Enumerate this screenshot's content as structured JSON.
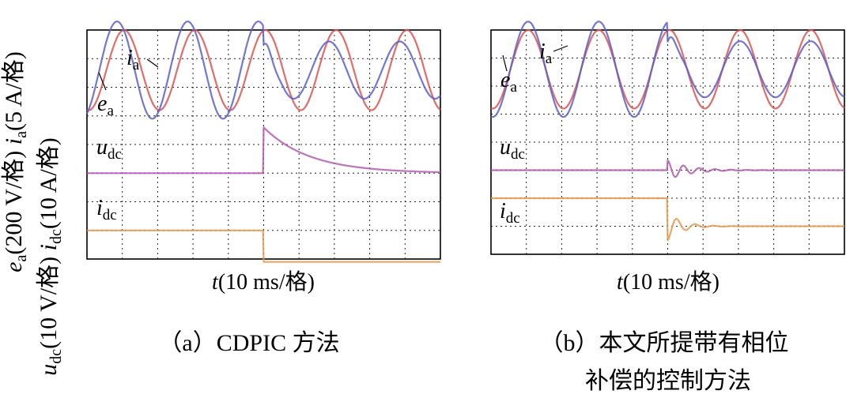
{
  "yaxis_labels": {
    "upper": {
      "e": "e",
      "e_sub": "a",
      "e_unit": "(200 V/格) ",
      "i": "i",
      "i_sub": "a",
      "i_unit": "(5 A/格)"
    },
    "lower": {
      "u": "u",
      "u_sub": "dc",
      "u_unit": "(10 V/格) ",
      "i": "i",
      "i_sub": "dc",
      "i_unit": "(10 A/格)"
    }
  },
  "panels": [
    {
      "id": "a",
      "xlabel": {
        "t": "t",
        "unit": "(10 ms/格)"
      },
      "caption_lines": [
        "（a）CDPIC 方法"
      ],
      "labels": {
        "i": "i",
        "i_sub": "a",
        "e": "e",
        "e_sub": "a",
        "u": "u",
        "u_sub": "dc",
        "idc": "i",
        "idc_sub": "dc"
      }
    },
    {
      "id": "b",
      "xlabel": {
        "t": "t",
        "unit": "(10 ms/格)"
      },
      "caption_lines": [
        "（b）本文所提带有相位",
        "补偿的控制方法"
      ],
      "labels": {
        "i": "i",
        "i_sub": "a",
        "e": "e",
        "e_sub": "a",
        "u": "u",
        "u_sub": "dc",
        "idc": "i",
        "idc_sub": "dc"
      }
    }
  ],
  "chart_data": [
    {
      "type": "line",
      "panel": "a",
      "x_unit": "div (10 ms/div)",
      "xlim": [
        0,
        10
      ],
      "grid": true,
      "step_time_div": 5.0,
      "series": [
        {
          "name": "ea",
          "color": "#d9534f",
          "amplitude_div": 1.4,
          "period_div": 2.0,
          "phase_div": 0.55,
          "center_div": 6.6
        },
        {
          "name": "ia",
          "color": "#5a5fc8",
          "amplitude_div_before": 1.7,
          "amplitude_div_after": 1.0,
          "period_div": 2.0,
          "phase_div": 0.35,
          "center_div": 6.6
        },
        {
          "name": "udc",
          "color": "#b05bb0",
          "level_div_before": 3.0,
          "peak_div": 4.6,
          "decay_div": 1.3
        },
        {
          "name": "idc",
          "color": "#e39a4f",
          "level_div_before": 1.0,
          "level_div_after": -0.1
        }
      ]
    },
    {
      "type": "line",
      "panel": "b",
      "x_unit": "div (10 ms/div)",
      "xlim": [
        0,
        10
      ],
      "grid": true,
      "step_time_div": 5.0,
      "series": [
        {
          "name": "ea",
          "color": "#d9534f",
          "amplitude_div": 1.4,
          "period_div": 2.0,
          "phase_div": 0.55,
          "center_div": 6.6
        },
        {
          "name": "ia",
          "color": "#5a5fc8",
          "amplitude_div_before": 1.7,
          "amplitude_div_after": 1.0,
          "period_div": 2.0,
          "phase_div": 0.55,
          "center_div": 6.6
        },
        {
          "name": "udc",
          "color": "#b05bb0",
          "level_div_before": 3.0,
          "peak_div": 3.3,
          "decay_div": 0.6
        },
        {
          "name": "idc",
          "color": "#e39a4f",
          "level_div_before": 2.0,
          "level_div_after": 1.0
        }
      ]
    }
  ]
}
